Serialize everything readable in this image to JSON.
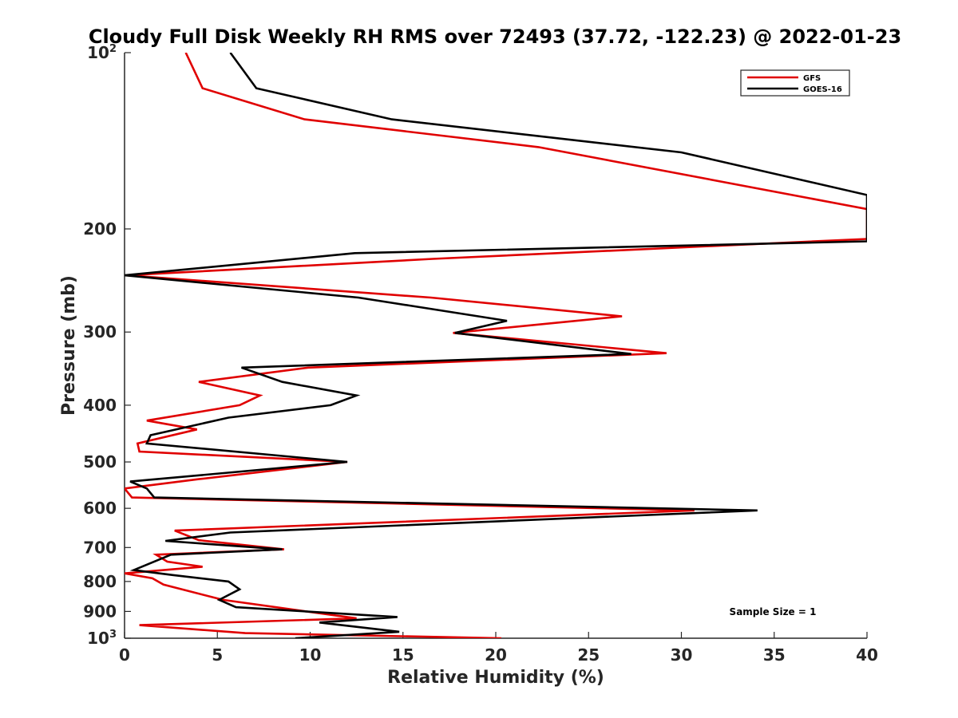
{
  "chart_data": {
    "type": "line",
    "title": "Cloudy Full Disk Weekly RH RMS over 72493 (37.72, -122.23) @ 2022-01-23",
    "xlabel": "Relative Humidity (%)",
    "ylabel": "Pressure (mb)",
    "xlim": [
      0,
      40
    ],
    "ylim": [
      100,
      1000
    ],
    "y_scale": "log",
    "y_reversed": true,
    "x_ticks": [
      "0",
      "5",
      "10",
      "15",
      "20",
      "25",
      "30",
      "35",
      "40"
    ],
    "y_ticks": [
      {
        "value": 100,
        "base": "10",
        "exp": "2"
      },
      {
        "value": 200,
        "label": "200"
      },
      {
        "value": 300,
        "label": "300"
      },
      {
        "value": 400,
        "label": "400"
      },
      {
        "value": 500,
        "label": "500"
      },
      {
        "value": 600,
        "label": "600"
      },
      {
        "value": 700,
        "label": "700"
      },
      {
        "value": 800,
        "label": "800"
      },
      {
        "value": 900,
        "label": "900"
      },
      {
        "value": 1000,
        "base": "10",
        "exp": "3"
      }
    ],
    "grid": false,
    "legend_position": "top-right",
    "annotation": "Sample Size = 1",
    "series": [
      {
        "name": "GFS",
        "color": "#e00000",
        "x": [
          3.3,
          4.2,
          9.7,
          22.3,
          40.0,
          40.0,
          16.6,
          0.1,
          16.5,
          26.8,
          17.7,
          29.2,
          9.9,
          4.0,
          7.3,
          6.2,
          1.2,
          3.9,
          0.7,
          0.8,
          12.0,
          4.0,
          0.0,
          0.4,
          30.7,
          2.7,
          4.0,
          8.6,
          1.7,
          2.3,
          4.2,
          0.0,
          1.5,
          2.1,
          5.3,
          12.5,
          0.8,
          6.5,
          20.3
        ],
        "y": [
          100,
          115,
          130,
          145,
          185,
          208,
          225,
          240,
          262,
          282,
          301,
          326,
          345,
          365,
          385,
          400,
          425,
          440,
          465,
          480,
          500,
          535,
          555,
          575,
          605,
          655,
          680,
          705,
          720,
          740,
          755,
          775,
          790,
          810,
          860,
          925,
          950,
          980,
          1000
        ]
      },
      {
        "name": "GOES-16",
        "color": "#000000",
        "x": [
          5.7,
          7.1,
          14.4,
          30.0,
          40.0,
          40.0,
          12.4,
          0.0,
          12.6,
          20.6,
          17.8,
          27.3,
          6.3,
          8.5,
          12.5,
          11.1,
          5.6,
          1.4,
          1.2,
          12.0,
          0.3,
          1.2,
          1.6,
          34.1,
          5.7,
          2.2,
          8.5,
          2.5,
          0.5,
          1.2,
          2.6,
          5.6,
          6.2,
          5.1,
          6.0,
          14.7,
          10.5,
          14.8,
          9.2
        ],
        "y": [
          100,
          115,
          130,
          148,
          175,
          210,
          220,
          240,
          262,
          287,
          301,
          327,
          345,
          365,
          385,
          400,
          420,
          450,
          465,
          500,
          540,
          555,
          575,
          605,
          660,
          682,
          705,
          720,
          765,
          770,
          780,
          800,
          825,
          860,
          885,
          920,
          940,
          975,
          1000
        ]
      }
    ]
  }
}
